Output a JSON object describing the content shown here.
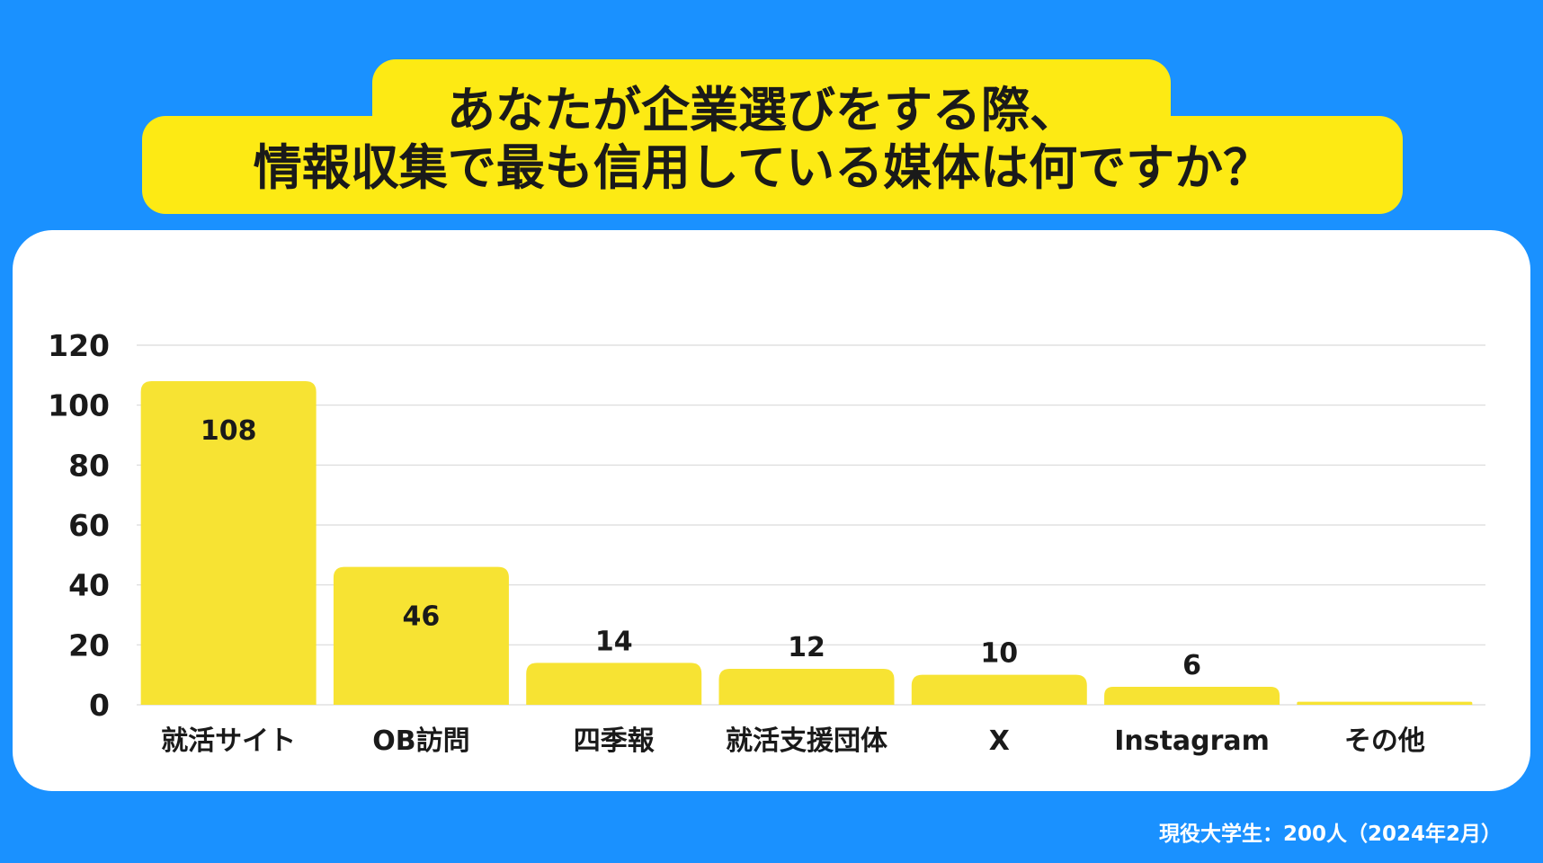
{
  "title": {
    "line1": "あなたが企業選びをする際、",
    "line2": "情報収集で最も信用している媒体は何ですか？"
  },
  "footnote": "現役大学生：200人（2024年2月）",
  "colors": {
    "background": "#1a91ff",
    "title_box": "#fdea14",
    "bar": "#f7e333",
    "card": "#ffffff",
    "gridline": "#d9d9d9",
    "text": "#1a1a1a"
  },
  "chart_data": {
    "type": "bar",
    "categories": [
      "就活サイト",
      "OB訪問",
      "四季報",
      "就活支援団体",
      "X",
      "Instagram",
      "その他"
    ],
    "values": [
      108,
      46,
      14,
      12,
      10,
      6,
      1
    ],
    "data_labels": [
      "108",
      "46",
      "14",
      "12",
      "10",
      "6",
      ""
    ],
    "y_ticks": [
      "0",
      "20",
      "40",
      "60",
      "80",
      "100",
      "120"
    ],
    "ylim": [
      0,
      120
    ],
    "grid": true,
    "legend": "none"
  }
}
